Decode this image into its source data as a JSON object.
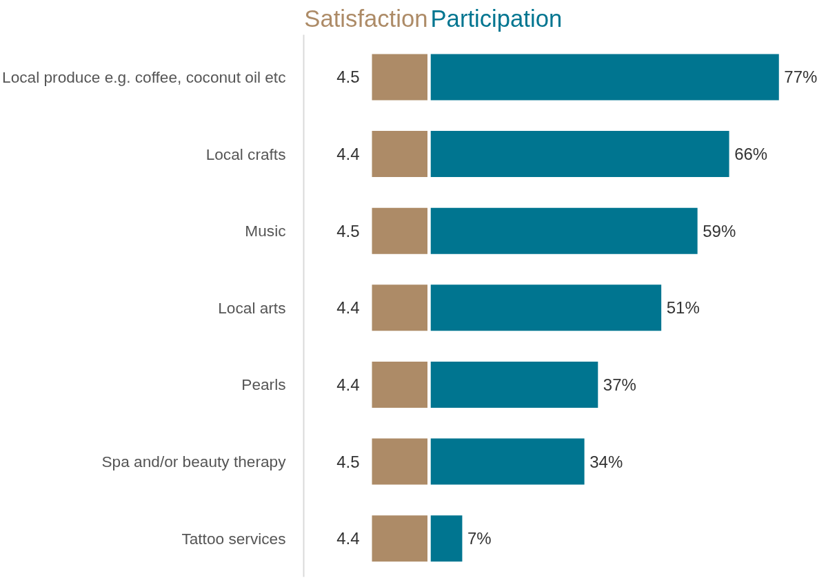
{
  "chart_data": [
    {
      "type": "other",
      "title": "Satisfaction",
      "color": "#ad8b67",
      "categories": [
        "Local produce e.g. coffee, coconut oil etc",
        "Local crafts",
        "Music",
        "Local arts",
        "Pearls",
        "Spa and/or beauty therapy",
        "Tattoo services"
      ],
      "values": [
        4.5,
        4.4,
        4.5,
        4.4,
        4.4,
        4.5,
        4.4
      ],
      "data_labels": true
    },
    {
      "type": "bar",
      "orientation": "horizontal",
      "title": "Participation",
      "color": "#007590",
      "categories": [
        null,
        null,
        null,
        null,
        null,
        null,
        null
      ],
      "values": [
        77,
        66,
        59,
        51,
        37,
        34,
        7
      ],
      "value_labels": [
        "77%",
        "66%",
        "59%",
        "51%",
        "37%",
        "34%",
        "7%"
      ]
    }
  ]
}
